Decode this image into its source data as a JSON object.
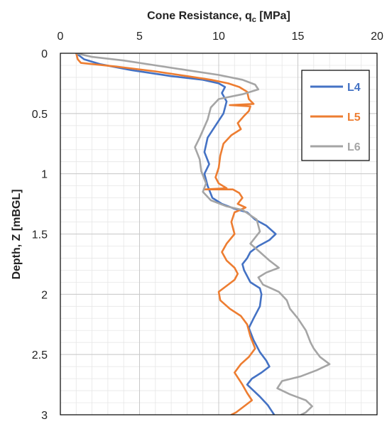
{
  "chart_data": {
    "type": "line",
    "title": "",
    "xlabel": {
      "main": "Cone Resistance, q",
      "sub": "c",
      "unit": " [MPa]"
    },
    "ylabel": "Depth, Z [mBGL]",
    "x_axis": {
      "position": "top",
      "range": [
        0,
        20
      ],
      "major_ticks": [
        0,
        5,
        10,
        15,
        20
      ],
      "tick_labels": [
        "0",
        "5",
        "10",
        "15",
        "20"
      ]
    },
    "y_axis": {
      "inverted": true,
      "range": [
        0,
        3
      ],
      "major_ticks": [
        0,
        0.5,
        1,
        1.5,
        2,
        2.5,
        3
      ],
      "tick_labels": [
        "0",
        "0.5",
        "1",
        "1.5",
        "2",
        "2.5",
        "3"
      ]
    },
    "grid": {
      "major": true,
      "minor": true,
      "x_minor_step": 1,
      "y_minor_step": 0.1
    },
    "legend": {
      "placement": "top-right",
      "boxed": true
    },
    "series": [
      {
        "name": "L4",
        "color": "#4472C4",
        "points": [
          [
            1.0,
            0.0
          ],
          [
            1.5,
            0.05
          ],
          [
            2.5,
            0.09
          ],
          [
            4.5,
            0.14
          ],
          [
            7.0,
            0.19
          ],
          [
            9.0,
            0.22
          ],
          [
            10.0,
            0.25
          ],
          [
            10.4,
            0.28
          ],
          [
            10.2,
            0.33
          ],
          [
            10.5,
            0.4
          ],
          [
            10.3,
            0.5
          ],
          [
            9.8,
            0.6
          ],
          [
            9.3,
            0.7
          ],
          [
            9.1,
            0.82
          ],
          [
            9.4,
            0.92
          ],
          [
            9.1,
            1.0
          ],
          [
            9.3,
            1.1
          ],
          [
            9.6,
            1.2
          ],
          [
            10.2,
            1.25
          ],
          [
            11.0,
            1.29
          ],
          [
            11.8,
            1.32
          ],
          [
            12.3,
            1.38
          ],
          [
            13.0,
            1.43
          ],
          [
            13.6,
            1.5
          ],
          [
            13.2,
            1.55
          ],
          [
            12.5,
            1.6
          ],
          [
            12.0,
            1.65
          ],
          [
            11.8,
            1.7
          ],
          [
            11.5,
            1.75
          ],
          [
            11.6,
            1.8
          ],
          [
            12.0,
            1.9
          ],
          [
            12.6,
            1.95
          ],
          [
            12.7,
            2.0
          ],
          [
            12.6,
            2.1
          ],
          [
            12.2,
            2.2
          ],
          [
            11.9,
            2.28
          ],
          [
            12.2,
            2.38
          ],
          [
            12.6,
            2.48
          ],
          [
            13.0,
            2.55
          ],
          [
            13.2,
            2.6
          ],
          [
            12.7,
            2.65
          ],
          [
            12.1,
            2.7
          ],
          [
            11.8,
            2.75
          ],
          [
            12.2,
            2.8
          ],
          [
            12.6,
            2.85
          ],
          [
            13.1,
            2.92
          ],
          [
            13.5,
            3.0
          ]
        ]
      },
      {
        "name": "L5",
        "color": "#ED7D31",
        "points": [
          [
            1.0,
            0.0
          ],
          [
            1.1,
            0.05
          ],
          [
            1.3,
            0.08
          ],
          [
            3.5,
            0.11
          ],
          [
            6.0,
            0.15
          ],
          [
            8.0,
            0.19
          ],
          [
            9.5,
            0.22
          ],
          [
            10.6,
            0.25
          ],
          [
            11.3,
            0.28
          ],
          [
            11.8,
            0.32
          ],
          [
            11.9,
            0.38
          ],
          [
            12.2,
            0.42
          ],
          [
            10.7,
            0.43
          ],
          [
            12.0,
            0.44
          ],
          [
            11.9,
            0.48
          ],
          [
            11.6,
            0.52
          ],
          [
            11.2,
            0.58
          ],
          [
            11.4,
            0.63
          ],
          [
            10.8,
            0.68
          ],
          [
            10.3,
            0.75
          ],
          [
            10.1,
            0.85
          ],
          [
            10.0,
            0.95
          ],
          [
            9.8,
            1.03
          ],
          [
            10.0,
            1.08
          ],
          [
            10.5,
            1.12
          ],
          [
            9.1,
            1.13
          ],
          [
            10.9,
            1.13
          ],
          [
            11.3,
            1.16
          ],
          [
            11.5,
            1.2
          ],
          [
            11.2,
            1.25
          ],
          [
            11.7,
            1.28
          ],
          [
            11.0,
            1.32
          ],
          [
            10.8,
            1.4
          ],
          [
            11.0,
            1.5
          ],
          [
            10.5,
            1.58
          ],
          [
            10.2,
            1.65
          ],
          [
            10.5,
            1.72
          ],
          [
            11.0,
            1.78
          ],
          [
            11.2,
            1.83
          ],
          [
            11.0,
            1.88
          ],
          [
            10.5,
            1.93
          ],
          [
            10.0,
            1.98
          ],
          [
            10.1,
            2.05
          ],
          [
            10.7,
            2.12
          ],
          [
            11.4,
            2.18
          ],
          [
            11.8,
            2.25
          ],
          [
            12.0,
            2.35
          ],
          [
            12.3,
            2.45
          ],
          [
            11.9,
            2.52
          ],
          [
            11.4,
            2.58
          ],
          [
            11.0,
            2.65
          ],
          [
            11.5,
            2.75
          ],
          [
            11.8,
            2.82
          ],
          [
            12.1,
            2.88
          ],
          [
            11.6,
            2.93
          ],
          [
            11.1,
            2.98
          ],
          [
            10.8,
            3.0
          ]
        ]
      },
      {
        "name": "L6",
        "color": "#A5A5A5",
        "points": [
          [
            1.0,
            0.0
          ],
          [
            2.0,
            0.03
          ],
          [
            4.0,
            0.06
          ],
          [
            6.0,
            0.1
          ],
          [
            8.0,
            0.14
          ],
          [
            10.0,
            0.18
          ],
          [
            11.5,
            0.22
          ],
          [
            12.3,
            0.26
          ],
          [
            12.5,
            0.3
          ],
          [
            11.5,
            0.34
          ],
          [
            10.0,
            0.38
          ],
          [
            9.5,
            0.45
          ],
          [
            9.3,
            0.55
          ],
          [
            8.8,
            0.7
          ],
          [
            8.5,
            0.78
          ],
          [
            8.8,
            0.88
          ],
          [
            8.9,
            0.98
          ],
          [
            9.2,
            1.08
          ],
          [
            9.0,
            1.15
          ],
          [
            9.5,
            1.22
          ],
          [
            10.5,
            1.27
          ],
          [
            11.5,
            1.3
          ],
          [
            12.4,
            1.38
          ],
          [
            12.6,
            1.48
          ],
          [
            12.0,
            1.58
          ],
          [
            12.6,
            1.65
          ],
          [
            13.2,
            1.72
          ],
          [
            13.8,
            1.78
          ],
          [
            13.0,
            1.82
          ],
          [
            12.5,
            1.86
          ],
          [
            12.8,
            1.92
          ],
          [
            13.8,
            1.98
          ],
          [
            14.3,
            2.05
          ],
          [
            14.5,
            2.12
          ],
          [
            15.0,
            2.2
          ],
          [
            15.5,
            2.3
          ],
          [
            15.8,
            2.4
          ],
          [
            16.0,
            2.45
          ],
          [
            16.4,
            2.52
          ],
          [
            17.0,
            2.58
          ],
          [
            16.2,
            2.63
          ],
          [
            15.2,
            2.68
          ],
          [
            14.0,
            2.72
          ],
          [
            13.7,
            2.78
          ],
          [
            14.5,
            2.83
          ],
          [
            15.5,
            2.88
          ],
          [
            15.9,
            2.93
          ],
          [
            15.5,
            2.98
          ],
          [
            15.2,
            3.0
          ]
        ]
      }
    ]
  }
}
